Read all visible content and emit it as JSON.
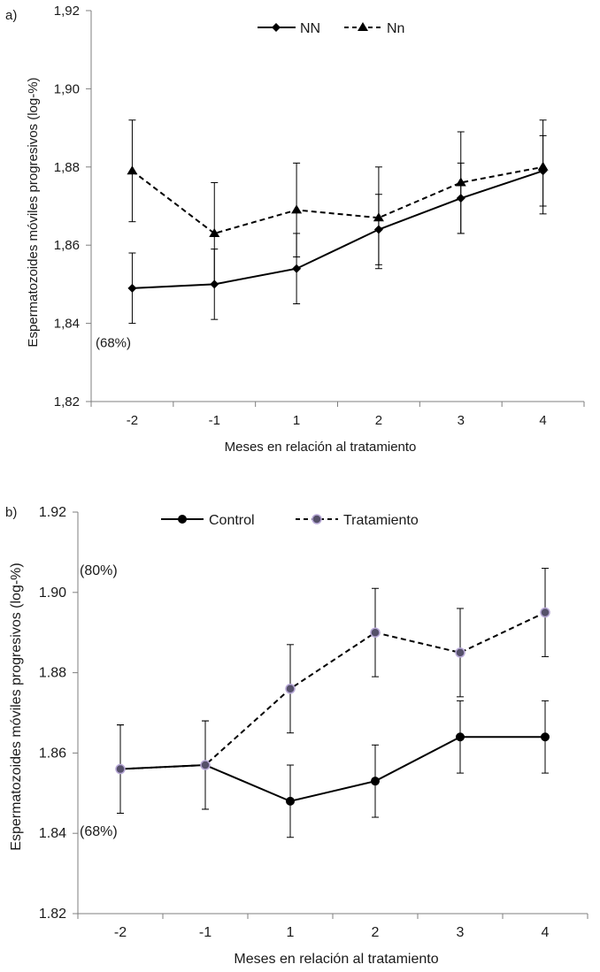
{
  "chart_data": [
    {
      "panel": "a)",
      "type": "line",
      "categories": [
        "-2",
        "-1",
        "1",
        "2",
        "3",
        "4"
      ],
      "ylabel": "Espermatozoides móviles progresivos (log-%)",
      "xlabel": "Meses en relación al tratamiento",
      "ylim": [
        1.82,
        1.92
      ],
      "yticks": [
        "1,82",
        "1,84",
        "1,86",
        "1,88",
        "1,90",
        "1,92"
      ],
      "ytick_values": [
        1.82,
        1.84,
        1.86,
        1.88,
        1.9,
        1.92
      ],
      "annotations": [
        {
          "text": "(68%)",
          "y": 1.835
        }
      ],
      "legend_position": "top",
      "series": [
        {
          "name": "NN",
          "style": "solid",
          "marker": "diamond",
          "values": [
            1.849,
            1.85,
            1.854,
            1.864,
            1.872,
            1.879
          ],
          "errors": [
            0.009,
            0.009,
            0.009,
            0.009,
            0.009,
            0.009
          ]
        },
        {
          "name": "Nn",
          "style": "dashed",
          "marker": "triangle",
          "values": [
            1.879,
            1.863,
            1.869,
            1.867,
            1.876,
            1.88
          ],
          "errors": [
            0.013,
            0.013,
            0.012,
            0.013,
            0.013,
            0.012
          ]
        }
      ]
    },
    {
      "panel": "b)",
      "type": "line",
      "categories": [
        "-2",
        "-1",
        "1",
        "2",
        "3",
        "4"
      ],
      "ylabel": "Espermatozoides móviles progresivos (log-%)",
      "xlabel": "Meses en relación al tratamiento",
      "ylim": [
        1.82,
        1.92
      ],
      "yticks": [
        "1.82",
        "1.84",
        "1.86",
        "1.88",
        "1.90",
        "1.92"
      ],
      "ytick_values": [
        1.82,
        1.84,
        1.86,
        1.88,
        1.9,
        1.92
      ],
      "annotations": [
        {
          "text": "(80%)",
          "y": 1.9055
        },
        {
          "text": "(68%)",
          "y": 1.8405
        }
      ],
      "legend_position": "top",
      "series": [
        {
          "name": "Control",
          "style": "solid",
          "marker": "circle",
          "values": [
            1.856,
            1.857,
            1.848,
            1.853,
            1.864,
            1.864
          ],
          "errors": [
            0.011,
            0.011,
            0.009,
            0.009,
            0.009,
            0.009
          ]
        },
        {
          "name": "Tratamiento",
          "style": "dashed",
          "marker": "circle-hollow",
          "values": [
            1.856,
            1.857,
            1.876,
            1.89,
            1.885,
            1.895
          ],
          "errors": [
            0.011,
            0.011,
            0.011,
            0.011,
            0.011,
            0.011
          ]
        }
      ]
    }
  ]
}
